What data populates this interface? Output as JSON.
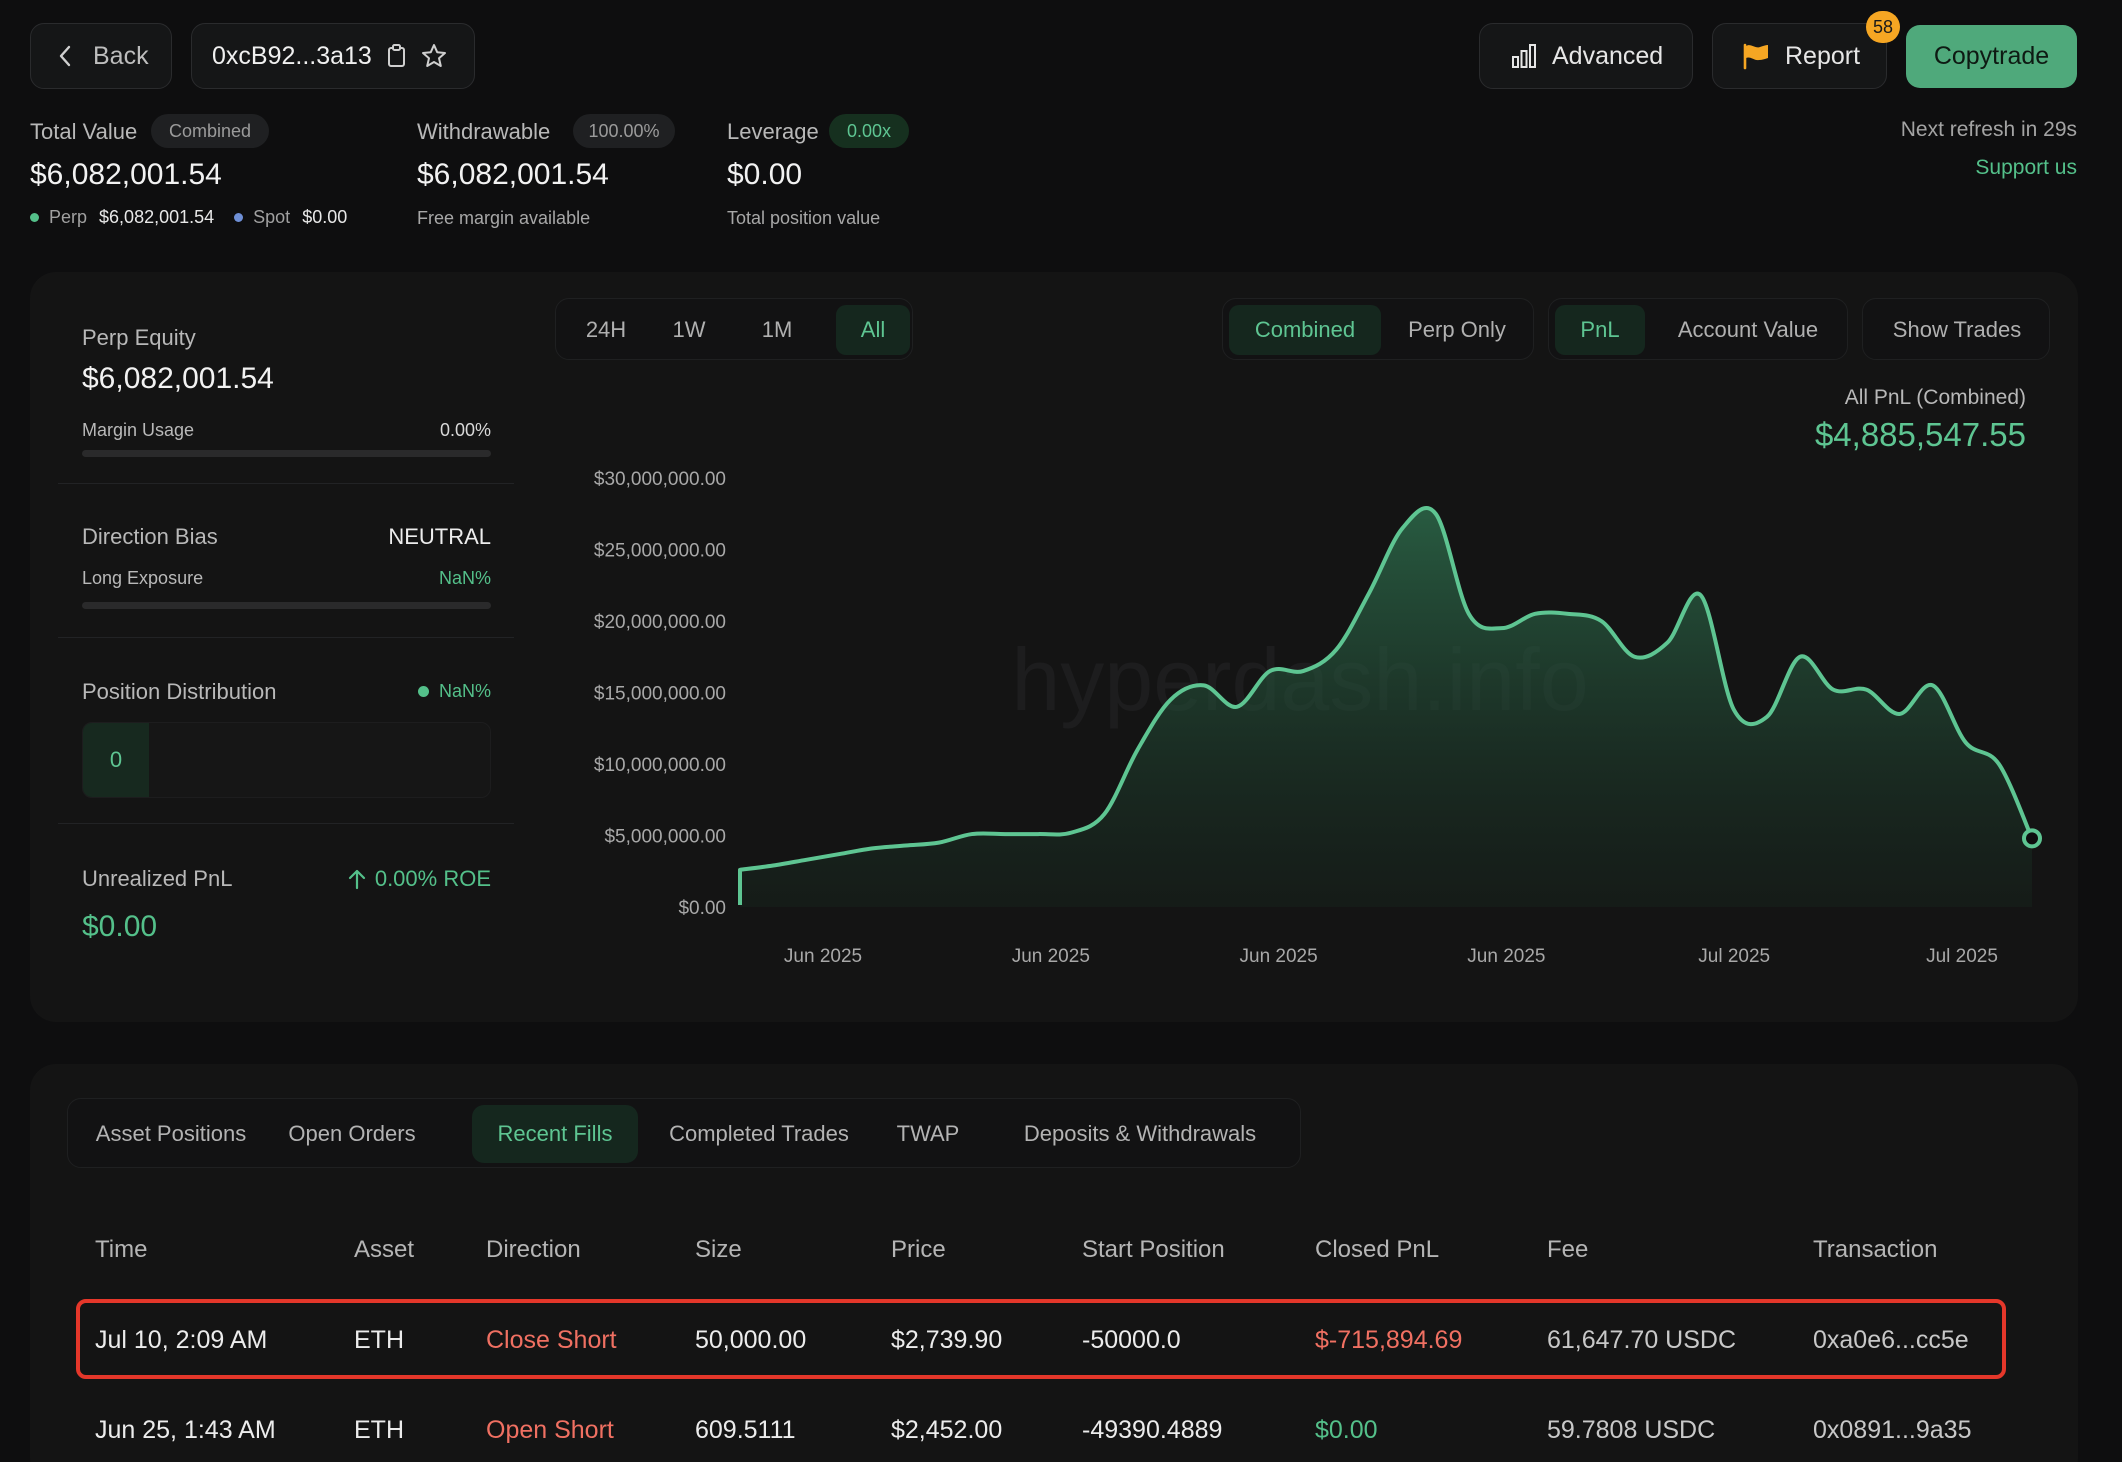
{
  "header": {
    "back_label": "Back",
    "address": "0xcB92...3a13",
    "advanced_label": "Advanced",
    "report_label": "Report",
    "report_badge": "58",
    "copytrade_label": "Copytrade"
  },
  "summary": {
    "total_value_label": "Total Value",
    "total_value_pill": "Combined",
    "total_value": "$6,082,001.54",
    "perp_label": "Perp",
    "perp_value": "$6,082,001.54",
    "spot_label": "Spot",
    "spot_value": "$0.00",
    "withdrawable_label": "Withdrawable",
    "withdrawable_pill": "100.00%",
    "withdrawable_value": "$6,082,001.54",
    "withdrawable_sub": "Free margin available",
    "leverage_label": "Leverage",
    "leverage_pill": "0.00x",
    "leverage_value": "$0.00",
    "leverage_sub": "Total position value",
    "refresh_text": "Next refresh in 29s",
    "support_text": "Support us"
  },
  "left_panel": {
    "perp_equity_label": "Perp Equity",
    "perp_equity_value": "$6,082,001.54",
    "margin_usage_label": "Margin Usage",
    "margin_usage_value": "0.00%",
    "direction_bias_label": "Direction Bias",
    "direction_bias_value": "NEUTRAL",
    "long_exposure_label": "Long Exposure",
    "long_exposure_value": "NaN%",
    "position_distribution_label": "Position Distribution",
    "position_distribution_value": "NaN%",
    "position_count": "0",
    "unrealized_pnl_label": "Unrealized PnL",
    "roe_text": "0.00% ROE",
    "unrealized_pnl_value": "$0.00"
  },
  "chart_controls": {
    "time_ranges": [
      "24H",
      "1W",
      "1M",
      "All"
    ],
    "active_time_range": "All",
    "scope": [
      "Combined",
      "Perp Only"
    ],
    "metric": [
      "PnL",
      "Account Value"
    ],
    "show_trades_label": "Show Trades",
    "pnl_label": "All PnL (Combined)",
    "pnl_value": "$4,885,547.55",
    "watermark": "hyperdash.info"
  },
  "chart_data": {
    "type": "area",
    "y_ticks": [
      "$30,000,000.00",
      "$25,000,000.00",
      "$20,000,000.00",
      "$15,000,000.00",
      "$10,000,000.00",
      "$5,000,000.00",
      "$0.00"
    ],
    "x_ticks": [
      "Jun 2025",
      "Jun 2025",
      "Jun 2025",
      "Jun 2025",
      "Jul 2025",
      "Jul 2025"
    ],
    "ylim": [
      0,
      30000000
    ],
    "values": [
      2600000,
      2900000,
      3300000,
      3700000,
      4100000,
      4300000,
      4500000,
      5100000,
      5100000,
      5100000,
      5200000,
      6500000,
      11000000,
      14500000,
      15500000,
      14000000,
      16500000,
      16500000,
      18000000,
      22000000,
      26500000,
      27500000,
      20500000,
      19500000,
      20500000,
      20500000,
      20000000,
      17500000,
      18500000,
      21800000,
      13800000,
      13300000,
      17500000,
      15200000,
      15200000,
      13500000,
      15500000,
      11500000,
      10000000,
      4800000
    ],
    "color": "#5ec592"
  },
  "tabs": {
    "items": [
      "Asset Positions",
      "Open Orders",
      "Recent Fills",
      "Completed Trades",
      "TWAP",
      "Deposits & Withdrawals"
    ],
    "active": "Recent Fills"
  },
  "table": {
    "headers": [
      "Time",
      "Asset",
      "Direction",
      "Size",
      "Price",
      "Start Position",
      "Closed PnL",
      "Fee",
      "Transaction"
    ],
    "rows": [
      [
        "Jul 10, 2:09 AM",
        "ETH",
        "Close Short",
        "50,000.00",
        "$2,739.90",
        "-50000.0",
        "$-715,894.69",
        "61,647.70 USDC",
        "0xa0e6...cc5e"
      ],
      [
        "Jun 25, 1:43 AM",
        "ETH",
        "Open Short",
        "609.5111",
        "$2,452.00",
        "-49390.4889",
        "$0.00",
        "59.7808 USDC",
        "0x0891...9a35"
      ]
    ]
  },
  "colors": {
    "accent": "#5ec592",
    "negative": "#f07062",
    "highlight_border": "#e5372a",
    "badge": "#f5a623"
  }
}
